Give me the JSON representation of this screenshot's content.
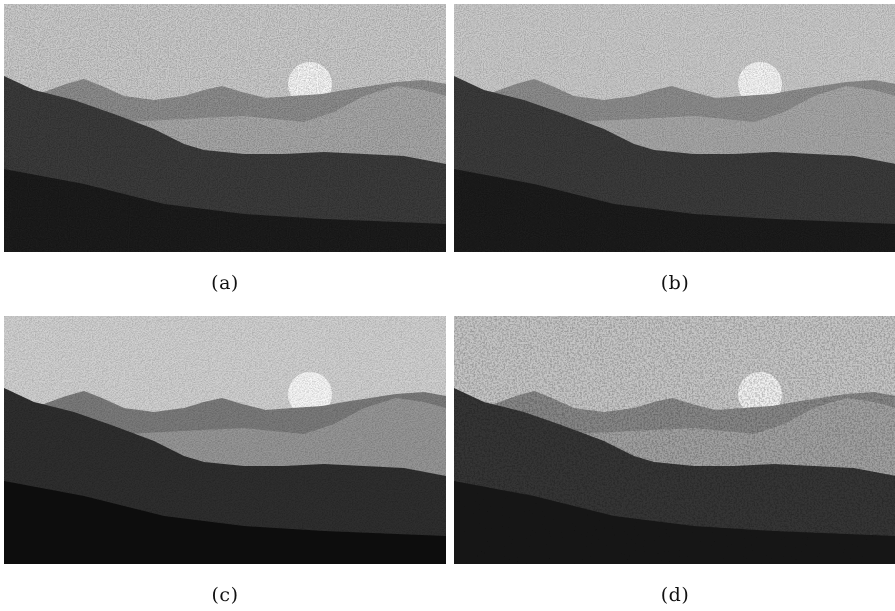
{
  "panels": [
    {
      "id": "a",
      "caption": "(a)"
    },
    {
      "id": "b",
      "caption": "(b)"
    },
    {
      "id": "c",
      "caption": "(c)"
    },
    {
      "id": "d",
      "caption": "(d)"
    }
  ],
  "colors": {
    "background": "#ffffff",
    "sky": "#c9c9c9",
    "sun": "#f4f4f4",
    "far_ridge": "#8c8c8c",
    "mid_haze": "#a6a6a6",
    "near_hill": "#3a3a3a",
    "foreground": "#1a1a1a"
  }
}
